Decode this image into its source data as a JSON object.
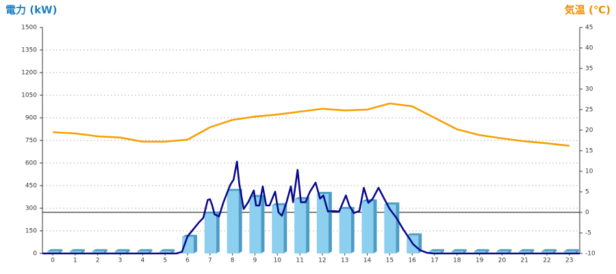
{
  "chart_data": {
    "type": "combo",
    "y_label": "電力 (kW)",
    "y2_label": "気温 (℃)",
    "y_label_color": "#1a7fc1",
    "y2_label_color": "#f08c00",
    "xlim": [
      -0.46,
      23.46
    ],
    "xticks": [
      0,
      1,
      2,
      3,
      4,
      5,
      6,
      7,
      8,
      9,
      10,
      11,
      12,
      13,
      14,
      15,
      16,
      17,
      18,
      19,
      20,
      21,
      22,
      23
    ],
    "ylim": [
      0,
      1500
    ],
    "yticks": [
      0,
      150,
      300,
      450,
      600,
      750,
      900,
      1050,
      1200,
      1350,
      1500
    ],
    "y2lim": [
      -10,
      45
    ],
    "y2ticks": [
      -10,
      -5,
      0,
      5,
      10,
      15,
      20,
      25,
      30,
      35,
      40,
      45
    ],
    "grid": true,
    "series": [
      {
        "type": "bar",
        "color": "#8ccfee",
        "side_color": "#4d9cc6",
        "x": [
          0,
          1,
          2,
          3,
          4,
          5,
          6,
          7,
          8,
          9,
          10,
          11,
          12,
          13,
          14,
          15,
          16,
          17,
          18,
          19,
          20,
          21,
          22,
          23
        ],
        "values": [
          15,
          15,
          15,
          15,
          15,
          15,
          110,
          265,
          415,
          375,
          320,
          360,
          395,
          295,
          345,
          325,
          120,
          15,
          15,
          15,
          15,
          15,
          15,
          15
        ]
      },
      {
        "type": "line",
        "axis": "y2",
        "color": "#f5a000",
        "x": [
          0,
          1,
          2,
          3,
          4,
          5,
          6,
          7,
          8,
          9,
          10,
          11,
          12,
          13,
          14,
          15,
          16,
          17,
          18,
          19,
          20,
          21,
          22,
          23
        ],
        "values": [
          19.5,
          19.2,
          18.5,
          18.2,
          17.2,
          17.2,
          17.7,
          20.7,
          22.5,
          23.3,
          23.8,
          24.5,
          25.2,
          24.8,
          25,
          26.5,
          25.8,
          23,
          20.2,
          18.8,
          18,
          17.3,
          16.8,
          16.2
        ]
      },
      {
        "type": "line",
        "color": "#0a0a8c",
        "x": [
          -0.46,
          5.5,
          5.75,
          6,
          6.2,
          6.5,
          6.7,
          6.9,
          7,
          7.1,
          7.2,
          7.4,
          7.6,
          7.9,
          8.05,
          8.2,
          8.3,
          8.5,
          8.7,
          8.95,
          9.05,
          9.2,
          9.35,
          9.5,
          9.65,
          9.9,
          10.05,
          10.2,
          10.4,
          10.6,
          10.7,
          10.9,
          11.05,
          11.25,
          11.45,
          11.7,
          11.9,
          12.05,
          12.25,
          12.5,
          12.75,
          13.05,
          13.2,
          13.4,
          13.65,
          13.85,
          14.05,
          14.25,
          14.5,
          14.75,
          15,
          15.3,
          15.6,
          15.85,
          16.05,
          16.35,
          16.65,
          16.95,
          23.46
        ],
        "values": [
          0,
          0,
          10,
          113,
          150,
          205,
          236,
          355,
          360,
          318,
          260,
          245,
          340,
          455,
          490,
          610,
          465,
          295,
          340,
          418,
          318,
          318,
          445,
          318,
          318,
          410,
          273,
          250,
          336,
          445,
          340,
          555,
          340,
          340,
          410,
          470,
          364,
          385,
          278,
          282,
          278,
          385,
          318,
          268,
          282,
          436,
          336,
          364,
          436,
          364,
          295,
          236,
          160,
          105,
          60,
          22,
          5,
          0,
          0
        ]
      }
    ]
  }
}
